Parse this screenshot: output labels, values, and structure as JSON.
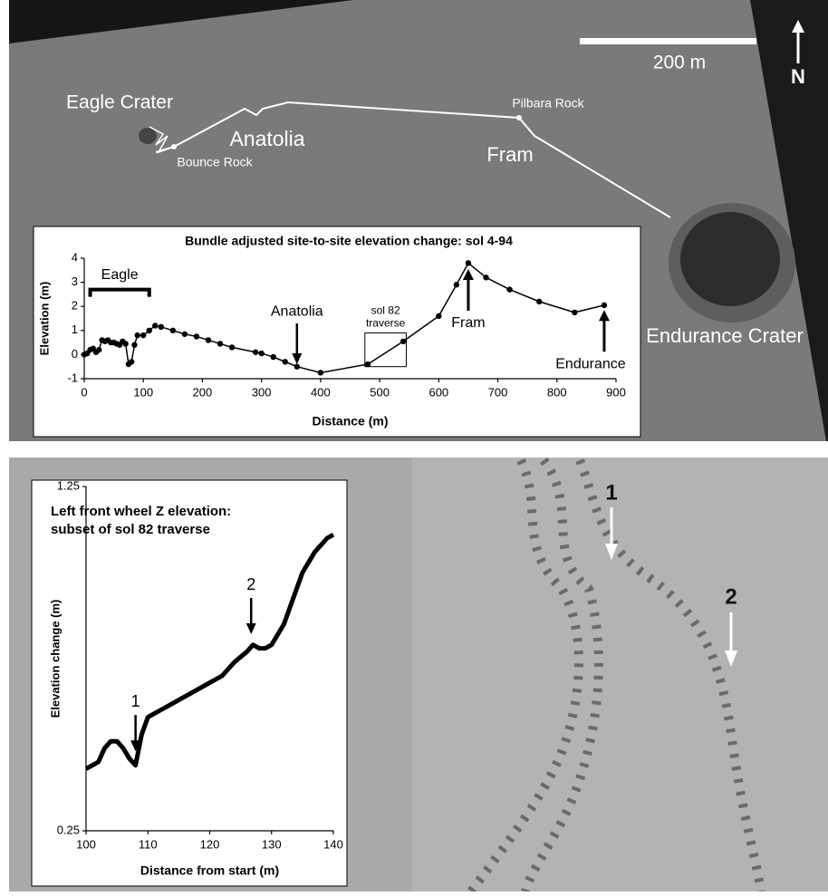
{
  "map": {
    "scale_label": "200 m",
    "north_label": "N",
    "places": [
      "Eagle Crater",
      "Anatolia",
      "Bounce Rock",
      "Pilbara Rock",
      "Fram",
      "Endurance Crater"
    ]
  },
  "photo": {
    "labels": [
      "1",
      "2"
    ]
  },
  "chart_data": [
    {
      "type": "line",
      "title": "Bundle adjusted site-to-site elevation change: sol 4-94",
      "xlabel": "Distance (m)",
      "ylabel": "Elevation (m)",
      "xlim": [
        0,
        900
      ],
      "xticks": [
        0,
        100,
        200,
        300,
        400,
        500,
        600,
        700,
        800,
        900
      ],
      "ylim": [
        -1,
        4
      ],
      "yticks": [
        -1,
        0,
        1,
        2,
        3,
        4
      ],
      "series": [
        {
          "color": "#000000",
          "x": [
            0,
            5,
            10,
            15,
            20,
            25,
            30,
            35,
            40,
            45,
            50,
            55,
            60,
            65,
            70,
            75,
            80,
            85,
            90,
            100,
            110,
            120,
            130,
            150,
            170,
            190,
            210,
            230,
            250,
            290,
            300,
            320,
            340,
            360,
            400,
            480,
            540,
            600,
            630,
            650,
            680,
            720,
            770,
            830,
            880
          ],
          "values": [
            0,
            0.05,
            0.2,
            0.25,
            0.1,
            0.2,
            0.6,
            0.55,
            0.6,
            0.5,
            0.5,
            0.45,
            0.4,
            0.55,
            0.45,
            -0.4,
            -0.3,
            0.4,
            0.8,
            0.8,
            1.0,
            1.2,
            1.15,
            1.0,
            0.85,
            0.75,
            0.6,
            0.45,
            0.3,
            0.1,
            0.05,
            -0.1,
            -0.3,
            -0.5,
            -0.75,
            -0.4,
            0.55,
            1.6,
            2.9,
            3.8,
            3.2,
            2.7,
            2.2,
            1.75,
            2.05
          ]
        }
      ],
      "annotations": [
        {
          "text": "Eagle",
          "x": 10,
          "x2": 110,
          "y": 2.7
        },
        {
          "text": "Anatolia",
          "x": 360,
          "y": -0.4
        },
        {
          "text": "sol 82 traverse",
          "x": 475,
          "x2": 545,
          "y": -0.5,
          "y2": 0.9
        },
        {
          "text": "Fram",
          "x": 650,
          "y": 3.7
        },
        {
          "text": "Endurance",
          "x": 880,
          "y": 2.0
        }
      ]
    },
    {
      "type": "line",
      "title": "Left front wheel Z elevation: subset of sol 82 traverse",
      "xlabel": "Distance from start (m)",
      "ylabel": "Elevation change (m)",
      "xlim": [
        100,
        140
      ],
      "xticks": [
        100,
        110,
        120,
        130,
        140
      ],
      "ylim": [
        0.25,
        1.25
      ],
      "yticks": [
        0.25,
        1.25
      ],
      "series": [
        {
          "color": "#000000",
          "x": [
            100,
            101,
            102,
            103,
            104,
            105,
            106,
            107,
            108,
            109,
            110,
            112,
            114,
            116,
            118,
            120,
            122,
            124,
            126,
            127,
            128,
            129,
            130,
            132,
            133,
            135,
            137,
            139,
            140
          ],
          "values": [
            0.43,
            0.44,
            0.45,
            0.49,
            0.51,
            0.51,
            0.49,
            0.46,
            0.44,
            0.53,
            0.58,
            0.6,
            0.62,
            0.64,
            0.66,
            0.68,
            0.7,
            0.74,
            0.77,
            0.79,
            0.78,
            0.78,
            0.79,
            0.85,
            0.9,
            1.0,
            1.06,
            1.1,
            1.11
          ]
        }
      ],
      "annotations": [
        {
          "text": "1",
          "x": 108,
          "y": 0.46
        },
        {
          "text": "2",
          "x": 126.7,
          "y": 0.8
        }
      ]
    }
  ]
}
